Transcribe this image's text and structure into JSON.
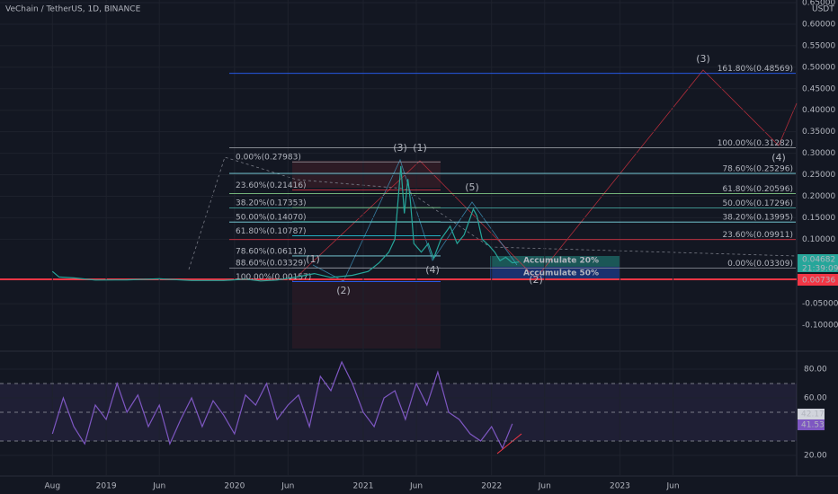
{
  "header": {
    "title": "VeChain / TetherUS, 1D, BINANCE",
    "currency": "USDT"
  },
  "chart_data": [
    {
      "type": "line",
      "color": "#26a69a",
      "xlim": [
        "2018-03-05",
        "2024-05-15"
      ],
      "xticks": [
        {
          "value": "2018-08-01",
          "label": "Aug"
        },
        {
          "value": "2019-01-01",
          "label": "2019"
        },
        {
          "value": "2019-06-01",
          "label": "Jun"
        },
        {
          "value": "2020-01-01",
          "label": "2020"
        },
        {
          "value": "2020-06-01",
          "label": "Jun"
        },
        {
          "value": "2021-01-01",
          "label": "2021"
        },
        {
          "value": "2021-06-01",
          "label": "Jun"
        },
        {
          "value": "2022-01-01",
          "label": "2022"
        },
        {
          "value": "2022-06-01",
          "label": "Jun"
        },
        {
          "value": "2023-01-01",
          "label": "2023"
        },
        {
          "value": "2023-06-01",
          "label": "Jun"
        }
      ],
      "ylim": [
        -0.15,
        0.65
      ],
      "yticks": [
        {
          "value": 0.65,
          "label": "0.65000"
        },
        {
          "value": 0.6,
          "label": "0.60000"
        },
        {
          "value": 0.55,
          "label": "0.55000"
        },
        {
          "value": 0.5,
          "label": "0.50000"
        },
        {
          "value": 0.45,
          "label": "0.45000"
        },
        {
          "value": 0.4,
          "label": "0.40000"
        },
        {
          "value": 0.35,
          "label": "0.35000"
        },
        {
          "value": 0.3,
          "label": "0.30000"
        },
        {
          "value": 0.25,
          "label": "0.25000"
        },
        {
          "value": 0.2,
          "label": "0.20000"
        },
        {
          "value": 0.15,
          "label": "0.15000"
        },
        {
          "value": 0.1,
          "label": "0.10000"
        },
        {
          "value": -0.05,
          "label": "-0.05000"
        },
        {
          "value": -0.1,
          "label": "-0.10000"
        }
      ],
      "x": [
        "2018-08-01",
        "2018-08-20",
        "2018-10-01",
        "2018-12-01",
        "2019-03-01",
        "2019-06-01",
        "2019-09-01",
        "2019-12-01",
        "2020-02-01",
        "2020-03-15",
        "2020-05-01",
        "2020-07-01",
        "2020-08-15",
        "2020-10-01",
        "2020-12-01",
        "2021-01-15",
        "2021-02-15",
        "2021-03-15",
        "2021-04-01",
        "2021-04-18",
        "2021-04-28",
        "2021-05-08",
        "2021-05-15",
        "2021-05-25",
        "2021-06-15",
        "2021-07-05",
        "2021-07-20",
        "2021-08-10",
        "2021-09-05",
        "2021-09-25",
        "2021-10-15",
        "2021-11-10",
        "2021-11-20",
        "2021-12-05",
        "2021-12-25",
        "2022-01-10",
        "2022-01-25",
        "2022-02-10",
        "2022-03-01",
        "2022-03-20"
      ],
      "values": [
        0.025,
        0.012,
        0.01,
        0.005,
        0.0055,
        0.008,
        0.004,
        0.004,
        0.007,
        0.003,
        0.005,
        0.013,
        0.02,
        0.011,
        0.016,
        0.025,
        0.045,
        0.07,
        0.1,
        0.27,
        0.16,
        0.24,
        0.19,
        0.09,
        0.07,
        0.09,
        0.055,
        0.1,
        0.13,
        0.09,
        0.11,
        0.17,
        0.155,
        0.1,
        0.085,
        0.07,
        0.05,
        0.058,
        0.045,
        0.047
      ]
    },
    {
      "type": "line",
      "color": "#7e57c2",
      "ylim": [
        10,
        95
      ],
      "yticks": [
        {
          "value": 80,
          "label": "80.00"
        },
        {
          "value": 60,
          "label": "60.00"
        },
        {
          "value": 20,
          "label": "20.00"
        }
      ],
      "levels": [
        70,
        50,
        30
      ],
      "x": [
        "2018-08-01",
        "2018-09-01",
        "2018-10-01",
        "2018-11-01",
        "2018-12-01",
        "2019-01-01",
        "2019-02-01",
        "2019-03-01",
        "2019-04-01",
        "2019-05-01",
        "2019-06-01",
        "2019-07-01",
        "2019-08-01",
        "2019-09-01",
        "2019-10-01",
        "2019-11-01",
        "2019-12-01",
        "2020-01-01",
        "2020-02-01",
        "2020-03-01",
        "2020-04-01",
        "2020-05-01",
        "2020-06-01",
        "2020-07-01",
        "2020-08-01",
        "2020-09-01",
        "2020-10-01",
        "2020-11-01",
        "2020-12-01",
        "2021-01-01",
        "2021-02-01",
        "2021-03-01",
        "2021-04-01",
        "2021-05-01",
        "2021-06-01",
        "2021-07-01",
        "2021-08-01",
        "2021-09-01",
        "2021-10-01",
        "2021-11-01",
        "2021-12-01",
        "2022-01-01",
        "2022-02-01",
        "2022-03-01"
      ],
      "values": [
        35,
        60,
        40,
        28,
        55,
        45,
        70,
        50,
        62,
        40,
        55,
        28,
        45,
        60,
        40,
        58,
        48,
        35,
        62,
        55,
        70,
        45,
        55,
        62,
        40,
        75,
        65,
        85,
        70,
        50,
        40,
        60,
        65,
        45,
        70,
        55,
        78,
        50,
        45,
        35,
        30,
        40,
        25,
        42
      ]
    }
  ],
  "fibonacci": {
    "left": [
      {
        "label": "0.00%(0.27983)",
        "value": 0.27983,
        "color": "#9598a1"
      },
      {
        "label": "23.60%(0.21416)",
        "value": 0.21416,
        "color": "#f23645"
      },
      {
        "label": "38.20%(0.17353)",
        "value": 0.17353,
        "color": "#81c784"
      },
      {
        "label": "50.00%(0.14070)",
        "value": 0.1407,
        "color": "#4db6ac"
      },
      {
        "label": "61.80%(0.10787)",
        "value": 0.10787,
        "color": "#26c6da"
      },
      {
        "label": "78.60%(0.06112)",
        "value": 0.06112,
        "color": "#80deea"
      },
      {
        "label": "88.60%(0.03329)",
        "value": 0.03329,
        "color": "#9598a1"
      },
      {
        "label": "100.00%(0.00157)",
        "value": 0.00157,
        "color": "#2962ff"
      }
    ],
    "right": [
      {
        "label": "161.80%(0.48569)",
        "value": 0.48569,
        "color": "#2962ff"
      },
      {
        "label": "100.00%(0.31282)",
        "value": 0.31282,
        "color": "#9598a1"
      },
      {
        "label": "78.60%(0.25296)",
        "value": 0.25296,
        "color": "#80deea"
      },
      {
        "label": "61.80%(0.20596)",
        "value": 0.20596,
        "color": "#81c784"
      },
      {
        "label": "50.00%(0.17296)",
        "value": 0.17296,
        "color": "#4db6ac"
      },
      {
        "label": "38.20%(0.13995)",
        "value": 0.13995,
        "color": "#80deea"
      },
      {
        "label": "23.60%(0.09911)",
        "value": 0.09911,
        "color": "#f23645"
      },
      {
        "label": "0.00%(0.03309)",
        "value": 0.03309,
        "color": "#9598a1"
      }
    ]
  },
  "waves": [
    {
      "label": "(3)",
      "color": "#f23645"
    },
    {
      "label": "(4)",
      "color": "#f23645"
    },
    {
      "label": "(3)",
      "color": "#4fc3f7"
    },
    {
      "label": "(1)",
      "color": "#f23645"
    },
    {
      "label": "(5)",
      "color": "#4fc3f7"
    },
    {
      "label": "(1)",
      "color": "#4fc3f7"
    },
    {
      "label": "(2)",
      "color": "#4fc3f7"
    },
    {
      "label": "(4)",
      "color": "#4fc3f7"
    },
    {
      "label": "(2)",
      "color": "#f23645"
    }
  ],
  "zones": [
    "Accumulate 20%",
    "Accumulate 50%"
  ],
  "price_tags": {
    "last": "0.04682",
    "countdown": "21:39:09",
    "line": "0.00736"
  },
  "rsi_tags": {
    "ma": "42.17",
    "rsi": "41.53"
  }
}
